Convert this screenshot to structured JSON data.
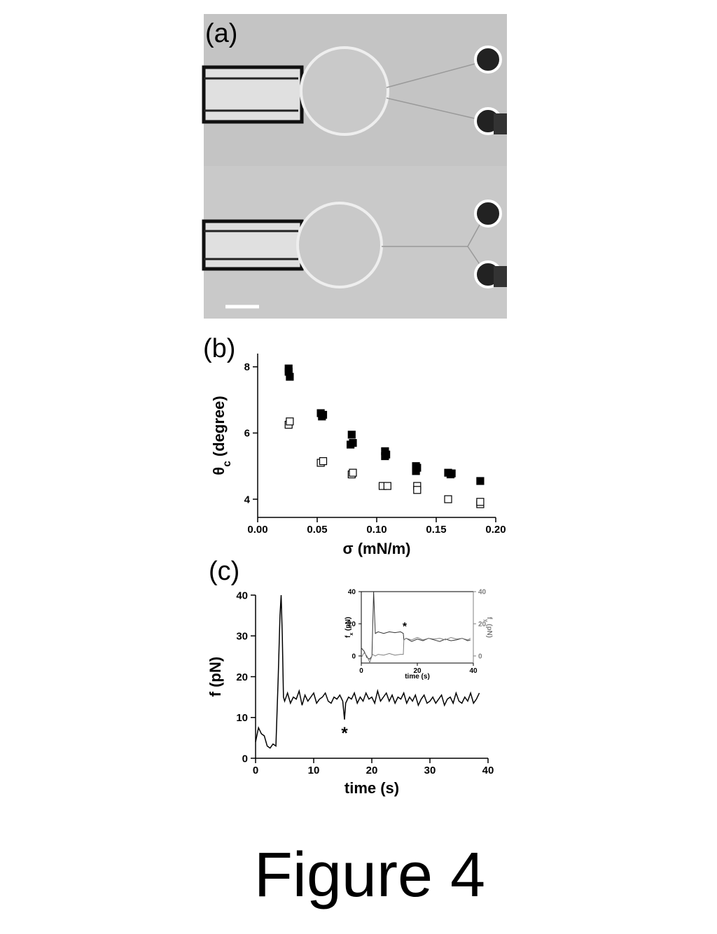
{
  "figure": {
    "panels": [
      "(a)",
      "(b)",
      "(c)"
    ],
    "caption": "Figure 4"
  },
  "chart_data": [
    {
      "type": "scatter",
      "xlabel": "σ (mN/m)",
      "ylabel": [
        "θ",
        "c",
        " (degree)"
      ],
      "xlim": [
        0,
        0.2
      ],
      "ylim": [
        3.45,
        8.4
      ],
      "xticks": [
        {
          "value": 0,
          "label": "0.00"
        },
        {
          "value": 0.05,
          "label": "0.05"
        },
        {
          "value": 0.1,
          "label": "0.10"
        },
        {
          "value": 0.15,
          "label": "0.15"
        },
        {
          "value": 0.2,
          "label": "0.20"
        }
      ],
      "yticks": [
        4,
        6,
        8
      ],
      "series": [
        {
          "color": "#000000",
          "filled": true,
          "x": [
            0.026,
            0.026,
            0.027,
            0.053,
            0.054,
            0.055,
            0.079,
            0.078,
            0.08,
            0.107,
            0.107,
            0.108,
            0.133,
            0.133,
            0.134,
            0.16,
            0.162,
            0.163,
            0.187
          ],
          "values": [
            7.95,
            7.85,
            7.7,
            6.6,
            6.5,
            6.55,
            5.95,
            5.65,
            5.7,
            5.45,
            5.3,
            5.35,
            5.0,
            4.85,
            4.95,
            4.8,
            4.75,
            4.78,
            4.55
          ]
        },
        {
          "color": "#000000",
          "filled": false,
          "x": [
            0.026,
            0.027,
            0.053,
            0.055,
            0.079,
            0.08,
            0.105,
            0.109,
            0.134,
            0.134,
            0.16,
            0.187,
            0.187
          ],
          "values": [
            6.25,
            6.35,
            5.1,
            5.15,
            4.75,
            4.8,
            4.4,
            4.4,
            4.4,
            4.28,
            4.0,
            3.85,
            3.92
          ]
        }
      ]
    },
    {
      "type": "line",
      "xlabel": "time (s)",
      "ylabel": [
        "f (pN)"
      ],
      "xlim": [
        0,
        40
      ],
      "ylim": [
        0,
        40
      ],
      "xticks": [
        0,
        10,
        20,
        30,
        40
      ],
      "yticks": [
        0,
        10,
        20,
        30,
        40
      ],
      "annotation": "*",
      "series": [
        {
          "color": "#000000",
          "x": [
            0,
            0.5,
            1,
            1.5,
            2,
            2.5,
            3,
            3.5,
            3.9,
            4.2,
            4.4,
            4.6,
            4.8,
            5,
            5.5,
            6,
            6.5,
            7,
            7.5,
            8,
            8.5,
            9,
            9.5,
            10,
            10.5,
            11,
            11.5,
            12,
            12.5,
            13,
            13.5,
            14,
            14.5,
            15,
            15.3,
            15.5,
            16,
            16.5,
            17,
            17.5,
            18,
            18.5,
            19,
            19.5,
            20,
            20.5,
            21,
            21.5,
            22,
            22.5,
            23,
            23.5,
            24,
            24.5,
            25,
            25.5,
            26,
            26.5,
            27,
            27.5,
            28,
            28.5,
            29,
            29.5,
            30,
            30.5,
            31,
            31.5,
            32,
            32.5,
            33,
            33.5,
            34,
            34.5,
            35,
            35.5,
            36,
            36.5,
            37,
            37.5,
            38,
            38.5
          ],
          "values": [
            4,
            7.5,
            6,
            5.5,
            3,
            2.5,
            3.5,
            3,
            20,
            35,
            40,
            30,
            15,
            14,
            16,
            13.5,
            15,
            14.5,
            16.5,
            13,
            15.5,
            14,
            15,
            16,
            13.5,
            14.5,
            15,
            16,
            14,
            13.5,
            15,
            14.5,
            15.5,
            14,
            9.5,
            13.5,
            15,
            14.5,
            16,
            13.5,
            15,
            14,
            16,
            14.5,
            15,
            13.5,
            16.5,
            14,
            15,
            16,
            14,
            15.5,
            13.5,
            15,
            14.5,
            16,
            13.5,
            15,
            14,
            15.5,
            13,
            14.5,
            15.5,
            13.5,
            14,
            15,
            13.5,
            14.5,
            15.5,
            13,
            14.5,
            15,
            13.5,
            16,
            14,
            13.5,
            15,
            14,
            16,
            13.5,
            14.5,
            16
          ]
        }
      ]
    },
    {
      "type": "line",
      "xlabel": "time (s)",
      "ylabel": [
        "f",
        "x",
        " (pN)"
      ],
      "y2label": [
        "f",
        "y",
        " (pN)"
      ],
      "xlim": [
        0,
        40
      ],
      "ylim": [
        -4.4,
        40
      ],
      "y2lim": [
        -4.4,
        40
      ],
      "xticks": [
        0,
        20,
        40
      ],
      "yticks": [
        0,
        20,
        40
      ],
      "y2ticks": [
        0,
        20,
        40
      ],
      "annotation": "*",
      "series": [
        {
          "color": "#333333",
          "x": [
            0,
            1,
            2,
            3,
            3.8,
            4.4,
            5,
            6,
            8,
            10,
            12,
            14,
            15,
            15.2,
            16,
            18,
            20,
            22,
            24,
            26,
            28,
            30,
            32,
            34,
            36,
            38,
            39
          ],
          "values": [
            5,
            3,
            -1,
            -2,
            0,
            40,
            14,
            15,
            14,
            15,
            14.5,
            15,
            14,
            10,
            11,
            9,
            10.5,
            9.5,
            11,
            10,
            9,
            10.5,
            9.5,
            10,
            11,
            9.5,
            10
          ]
        },
        {
          "color": "#808080",
          "axis": "y2",
          "x": [
            0,
            1,
            2,
            3,
            4,
            5,
            6,
            8,
            10,
            12,
            14,
            15,
            15.2,
            16,
            18,
            20,
            22,
            24,
            26,
            28,
            30,
            32,
            34,
            36,
            38,
            39
          ],
          "values": [
            -1,
            2,
            0,
            -4,
            1,
            0,
            1,
            0.5,
            1.5,
            0.5,
            1,
            1,
            10,
            11,
            10,
            11.5,
            10,
            11,
            10.5,
            11,
            10,
            11.5,
            10.5,
            11,
            10,
            11
          ]
        }
      ]
    }
  ]
}
